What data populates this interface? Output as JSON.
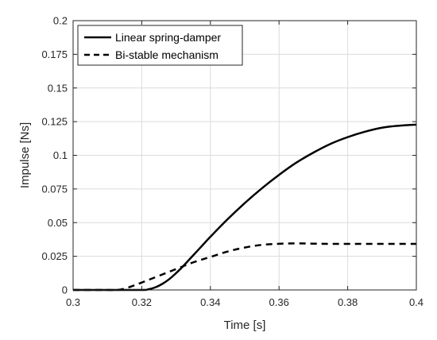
{
  "chart_data": {
    "type": "line",
    "xlabel": "Time [s]",
    "ylabel": "Impulse [Ns]",
    "xlim": [
      0.3,
      0.4
    ],
    "ylim": [
      0,
      0.2
    ],
    "xticks": [
      "0.3",
      "0.32",
      "0.34",
      "0.36",
      "0.38",
      "0.4"
    ],
    "yticks": [
      "0",
      "0.025",
      "0.05",
      "0.075",
      "0.1",
      "0.125",
      "0.15",
      "0.175",
      "0.2"
    ],
    "grid": true,
    "legend_position": "top-left",
    "series": [
      {
        "name": "Linear spring-damper",
        "style": "solid",
        "color": "#000000",
        "x": [
          0.3,
          0.31,
          0.32,
          0.322,
          0.324,
          0.326,
          0.328,
          0.33,
          0.332,
          0.334,
          0.336,
          0.338,
          0.34,
          0.345,
          0.35,
          0.355,
          0.36,
          0.365,
          0.37,
          0.375,
          0.38,
          0.385,
          0.39,
          0.395,
          0.4
        ],
        "y": [
          0,
          0,
          0,
          0.0005,
          0.002,
          0.0045,
          0.008,
          0.0125,
          0.0175,
          0.023,
          0.0285,
          0.034,
          0.0395,
          0.0525,
          0.0645,
          0.0755,
          0.0855,
          0.0945,
          0.102,
          0.1085,
          0.1135,
          0.1175,
          0.1205,
          0.122,
          0.1228
        ]
      },
      {
        "name": "Bi-stable mechanism",
        "style": "dashed",
        "color": "#000000",
        "x": [
          0.3,
          0.31,
          0.313,
          0.316,
          0.32,
          0.325,
          0.33,
          0.335,
          0.34,
          0.345,
          0.35,
          0.355,
          0.36,
          0.365,
          0.37,
          0.375,
          0.38,
          0.385,
          0.39,
          0.395,
          0.4
        ],
        "y": [
          0,
          0,
          0,
          0.0018,
          0.0055,
          0.0105,
          0.0155,
          0.0205,
          0.0245,
          0.0285,
          0.0315,
          0.0335,
          0.0343,
          0.0346,
          0.0344,
          0.0342,
          0.0342,
          0.0342,
          0.0342,
          0.0342,
          0.0342
        ]
      }
    ]
  }
}
